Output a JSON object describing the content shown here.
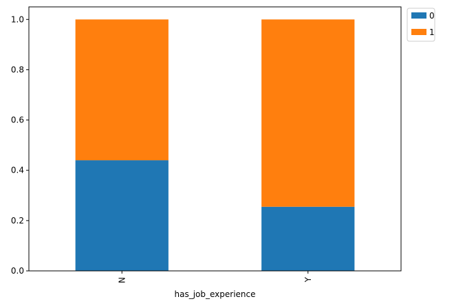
{
  "chart_data": {
    "type": "bar",
    "stacked": true,
    "categories": [
      "N",
      "Y"
    ],
    "series": [
      {
        "name": "0",
        "values": [
          0.44,
          0.255
        ],
        "color": "#1f77b4"
      },
      {
        "name": "1",
        "values": [
          0.56,
          0.745
        ],
        "color": "#ff7f0e"
      }
    ],
    "xlabel": "has_job_experience",
    "ylabel": "",
    "title": "",
    "ylim": [
      0,
      1.05
    ],
    "yticks": [
      "0.0",
      "0.2",
      "0.4",
      "0.6",
      "0.8",
      "1.0"
    ],
    "grid": false,
    "legend": {
      "position": "outside-top-right",
      "entries": [
        "0",
        "1"
      ]
    }
  }
}
